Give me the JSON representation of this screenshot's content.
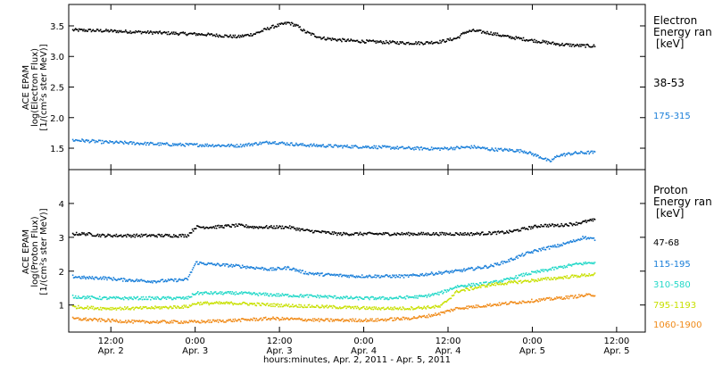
{
  "chart_data": [
    {
      "type": "scatter",
      "panel": "electron",
      "ylabel_lines": [
        "ACE EPAM",
        "log(Electron Flux)",
        "[1/(cm²s ster MeV)]"
      ],
      "ylim": [
        1.15,
        3.85
      ],
      "yticks": [
        "1.5",
        "2.0",
        "2.5",
        "3.0",
        "3.5"
      ],
      "ytick_values": [
        1.5,
        2.0,
        2.5,
        3.0,
        3.5
      ],
      "legend_title_lines": [
        "Electron",
        "Energy ran",
        "[keV]"
      ],
      "series": [
        {
          "name": "38-53",
          "color": "#000000",
          "x": [
            0.05,
            0.2,
            0.4,
            0.6,
            0.8,
            0.9,
            1.0,
            1.1,
            1.2,
            1.3,
            1.35,
            1.4,
            1.5,
            1.6,
            1.7,
            1.8,
            1.9,
            2.0,
            2.1,
            2.2,
            2.3,
            2.35,
            2.4,
            2.5,
            2.6,
            2.7,
            2.8,
            2.9,
            3.0,
            3.1,
            3.2,
            3.3,
            3.4
          ],
          "y": [
            3.43,
            3.42,
            3.4,
            3.38,
            3.36,
            3.34,
            3.32,
            3.37,
            3.48,
            3.55,
            3.5,
            3.4,
            3.3,
            3.27,
            3.25,
            3.24,
            3.23,
            3.22,
            3.22,
            3.24,
            3.3,
            3.4,
            3.42,
            3.38,
            3.32,
            3.28,
            3.24,
            3.2,
            3.18,
            3.17,
            3.16,
            3.14,
            3.12
          ]
        },
        {
          "name": "175-315",
          "color": "#1a7fd9",
          "x": [
            0.05,
            0.2,
            0.4,
            0.6,
            0.8,
            1.0,
            1.1,
            1.2,
            1.3,
            1.4,
            1.6,
            1.8,
            2.0,
            2.2,
            2.4,
            2.5,
            2.6,
            2.7,
            2.8,
            2.85,
            2.9,
            3.0,
            3.1,
            3.2,
            3.3,
            3.4
          ],
          "y": [
            1.63,
            1.6,
            1.58,
            1.56,
            1.55,
            1.54,
            1.57,
            1.6,
            1.57,
            1.55,
            1.53,
            1.52,
            1.5,
            1.49,
            1.52,
            1.48,
            1.47,
            1.45,
            1.35,
            1.28,
            1.38,
            1.42,
            1.43,
            1.41,
            1.4,
            1.38
          ]
        }
      ]
    },
    {
      "type": "scatter",
      "panel": "proton",
      "ylabel_lines": [
        "ACE EPAM",
        "log(Proton Flux)",
        "[1/(cm²s ster MeV)]"
      ],
      "xlabel": "hours:minutes, Apr.  2, 2011 - Apr.  5, 2011",
      "xticks": [
        {
          "time": "12:00",
          "date": "Apr. 2",
          "day": 0.25
        },
        {
          "time": "0:00",
          "date": "Apr. 3",
          "day": 0.75
        },
        {
          "time": "12:00",
          "date": "Apr. 3",
          "day": 1.25
        },
        {
          "time": "0:00",
          "date": "Apr. 4",
          "day": 1.75
        },
        {
          "time": "12:00",
          "date": "Apr. 4",
          "day": 2.25
        },
        {
          "time": "0:00",
          "date": "Apr. 5",
          "day": 2.75
        },
        {
          "time": "12:00",
          "date": "Apr. 5",
          "day": 3.25
        }
      ],
      "xlim_days": [
        0.0,
        3.42
      ],
      "data_end_day": 3.12,
      "ylim": [
        0.2,
        5.0
      ],
      "yticks": [
        "1",
        "2",
        "3",
        "4"
      ],
      "ytick_values": [
        1,
        2,
        3,
        4
      ],
      "legend_title_lines": [
        "Proton",
        "Energy ran",
        "[keV]"
      ],
      "series": [
        {
          "name": "47-68",
          "color": "#000000",
          "x": [
            0.0,
            0.1,
            0.2,
            0.3,
            0.5,
            0.7,
            0.75,
            0.85,
            1.0,
            1.1,
            1.2,
            1.3,
            1.4,
            1.5,
            1.6,
            1.8,
            2.0,
            2.2,
            2.4,
            2.6,
            2.7,
            2.8,
            2.9,
            3.0,
            3.05,
            3.1
          ],
          "y": [
            3.1,
            3.1,
            3.05,
            3.05,
            3.05,
            3.05,
            3.3,
            3.3,
            3.35,
            3.3,
            3.3,
            3.3,
            3.2,
            3.15,
            3.1,
            3.1,
            3.1,
            3.1,
            3.1,
            3.15,
            3.25,
            3.35,
            3.35,
            3.4,
            3.45,
            3.5
          ]
        },
        {
          "name": "115-195",
          "color": "#1a7fd9",
          "x": [
            0.0,
            0.1,
            0.2,
            0.3,
            0.5,
            0.7,
            0.75,
            0.85,
            1.0,
            1.1,
            1.2,
            1.3,
            1.4,
            1.5,
            1.7,
            2.0,
            2.2,
            2.3,
            2.5,
            2.6,
            2.7,
            2.8,
            2.9,
            3.0,
            3.05,
            3.1
          ],
          "y": [
            1.85,
            1.8,
            1.8,
            1.75,
            1.7,
            1.75,
            2.25,
            2.2,
            2.15,
            2.1,
            2.05,
            2.1,
            1.95,
            1.9,
            1.85,
            1.85,
            1.95,
            2.0,
            2.15,
            2.3,
            2.5,
            2.65,
            2.75,
            2.9,
            3.0,
            2.95
          ]
        },
        {
          "name": "310-580",
          "color": "#22d8c8",
          "x": [
            0.0,
            0.2,
            0.4,
            0.7,
            0.75,
            1.0,
            1.2,
            1.5,
            1.7,
            1.9,
            2.1,
            2.2,
            2.3,
            2.5,
            2.6,
            2.7,
            2.8,
            2.9,
            3.0,
            3.1
          ],
          "y": [
            1.25,
            1.2,
            1.2,
            1.2,
            1.35,
            1.35,
            1.3,
            1.25,
            1.2,
            1.2,
            1.25,
            1.35,
            1.55,
            1.65,
            1.75,
            1.9,
            2.0,
            2.1,
            2.2,
            2.25
          ]
        },
        {
          "name": "795-1193",
          "color": "#c8e000",
          "x": [
            0.0,
            0.2,
            0.4,
            0.7,
            0.75,
            1.0,
            1.2,
            1.5,
            1.8,
            2.0,
            2.2,
            2.3,
            2.4,
            2.5,
            2.6,
            2.7,
            2.8,
            2.9,
            3.0,
            3.1
          ],
          "y": [
            0.95,
            0.9,
            0.9,
            0.95,
            1.05,
            1.05,
            1.0,
            0.95,
            0.9,
            0.9,
            0.95,
            1.4,
            1.5,
            1.6,
            1.65,
            1.7,
            1.75,
            1.8,
            1.85,
            1.9
          ]
        },
        {
          "name": "1060-1900",
          "color": "#f08a18",
          "x": [
            0.0,
            0.2,
            0.4,
            0.6,
            0.75,
            1.0,
            1.2,
            1.5,
            1.8,
            2.0,
            2.1,
            2.2,
            2.3,
            2.4,
            2.5,
            2.6,
            2.8,
            3.0,
            3.1
          ],
          "y": [
            0.6,
            0.55,
            0.5,
            0.5,
            0.5,
            0.55,
            0.6,
            0.55,
            0.55,
            0.6,
            0.65,
            0.75,
            0.9,
            0.95,
            1.0,
            1.05,
            1.15,
            1.25,
            1.3
          ]
        }
      ]
    }
  ]
}
